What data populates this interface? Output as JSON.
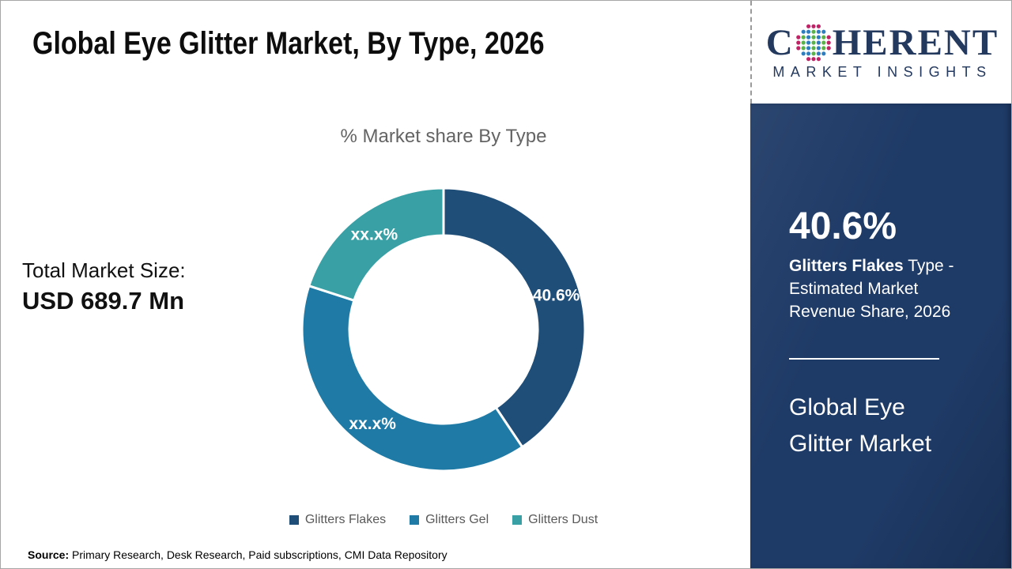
{
  "header": {
    "title": "Global Eye Glitter Market, By Type, 2026"
  },
  "logo": {
    "word_start": "C",
    "word_end": "HERENT",
    "subtitle": "MARKET INSIGHTS",
    "text_color": "#24395e",
    "globe_icon_colors": {
      "green": "#5ab34a",
      "blue": "#2e7dbf",
      "magenta": "#c02366"
    }
  },
  "left_stat": {
    "label": "Total Market Size:",
    "value": "USD 689.7 Mn"
  },
  "chart_data": {
    "type": "pie",
    "subtype": "donut",
    "title": "% Market share By Type",
    "unit": "%",
    "legend_position": "bottom",
    "slices": [
      {
        "name": "Glitters Flakes",
        "value": 40.6,
        "label": "40.6%",
        "color": "#1f4e79"
      },
      {
        "name": "Glitters Gel",
        "value": 39.4,
        "label": "xx.x%",
        "color": "#1f7ba6"
      },
      {
        "name": "Glitters Dust",
        "value": 20.0,
        "label": "xx.x%",
        "color": "#39a0a5"
      }
    ]
  },
  "side_panel": {
    "bg_color": "#1e3a66",
    "stat_value": "40.6%",
    "stat_bold": "Glitters Flakes",
    "stat_rest": " Type - Estimated Market Revenue Share, 2026",
    "market_name": "Global Eye Glitter Market"
  },
  "footer": {
    "source_label": "Source:",
    "source_text": " Primary Research, Desk Research, Paid subscriptions, CMI Data Repository"
  }
}
